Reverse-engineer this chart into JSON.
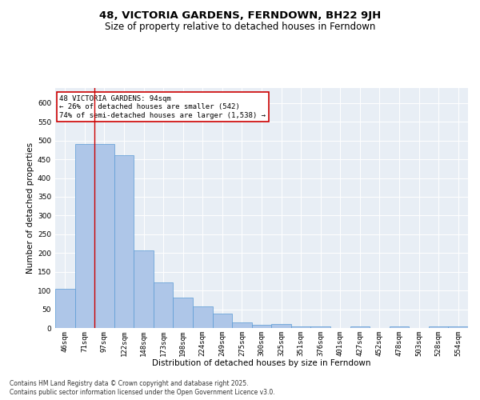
{
  "title": "48, VICTORIA GARDENS, FERNDOWN, BH22 9JH",
  "subtitle": "Size of property relative to detached houses in Ferndown",
  "xlabel": "Distribution of detached houses by size in Ferndown",
  "ylabel": "Number of detached properties",
  "footnote1": "Contains HM Land Registry data © Crown copyright and database right 2025.",
  "footnote2": "Contains public sector information licensed under the Open Government Licence v3.0.",
  "annotation_line1": "48 VICTORIA GARDENS: 94sqm",
  "annotation_line2": "← 26% of detached houses are smaller (542)",
  "annotation_line3": "74% of semi-detached houses are larger (1,538) →",
  "categories": [
    "46sqm",
    "71sqm",
    "97sqm",
    "122sqm",
    "148sqm",
    "173sqm",
    "198sqm",
    "224sqm",
    "249sqm",
    "275sqm",
    "300sqm",
    "325sqm",
    "351sqm",
    "376sqm",
    "401sqm",
    "427sqm",
    "452sqm",
    "478sqm",
    "503sqm",
    "528sqm",
    "554sqm"
  ],
  "bar_values": [
    105,
    490,
    490,
    460,
    207,
    122,
    82,
    58,
    38,
    14,
    9,
    11,
    5,
    5,
    0,
    5,
    0,
    5,
    0,
    5,
    5
  ],
  "bar_color": "#aec6e8",
  "bar_edge_color": "#5b9bd5",
  "vline_color": "#cc0000",
  "annotation_box_color": "#cc0000",
  "ylim": [
    0,
    640
  ],
  "yticks": [
    0,
    50,
    100,
    150,
    200,
    250,
    300,
    350,
    400,
    450,
    500,
    550,
    600
  ],
  "bg_color": "#e8eef5",
  "title_fontsize": 9.5,
  "subtitle_fontsize": 8.5,
  "annotation_fontsize": 6.5,
  "tick_fontsize": 6.5,
  "axis_label_fontsize": 7.5,
  "footnote_fontsize": 5.5
}
